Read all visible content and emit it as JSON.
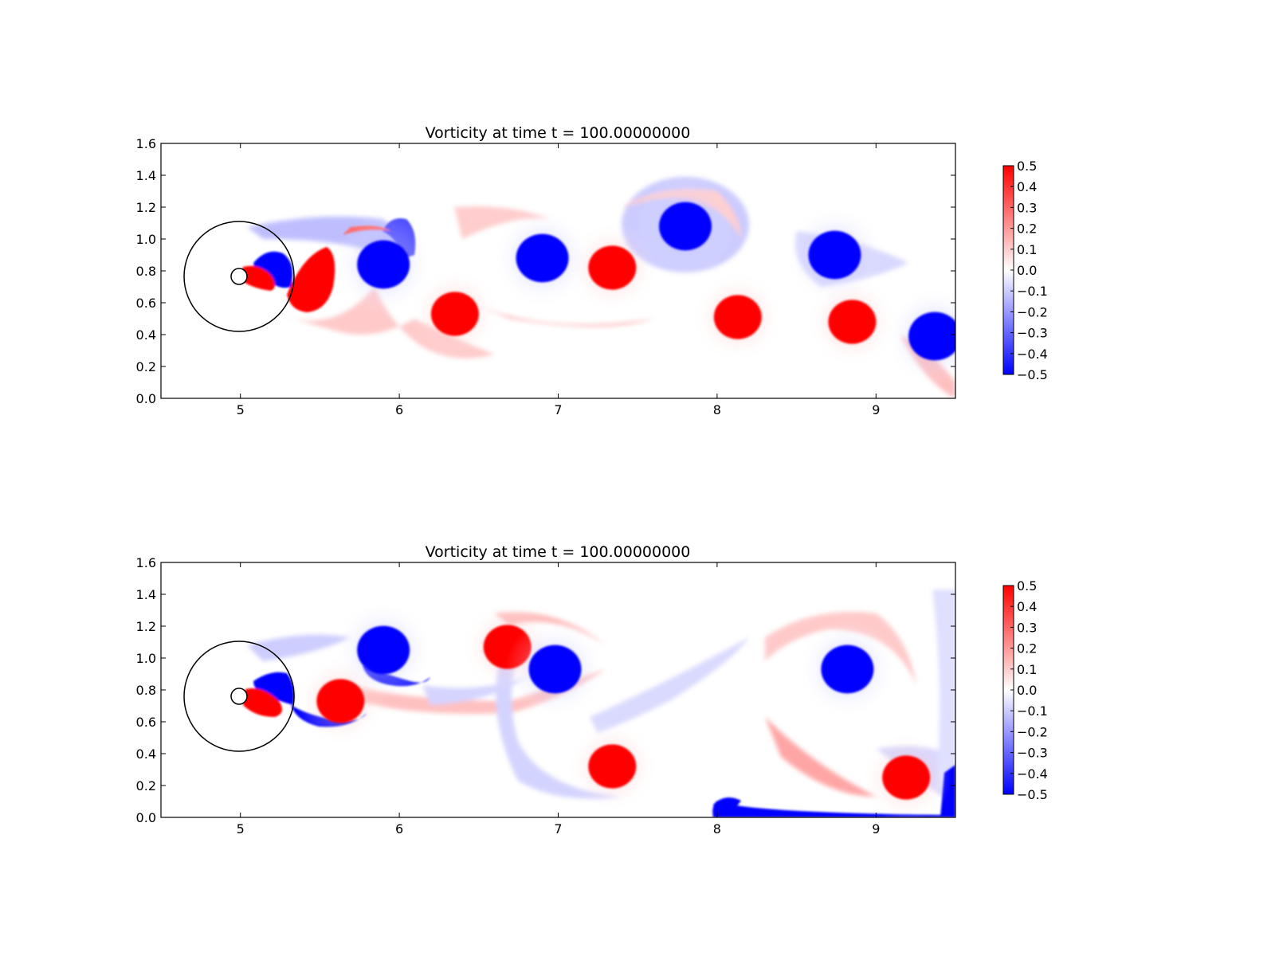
{
  "chart_data": [
    {
      "type": "heatmap",
      "title": "Vorticity at time t =    100.00000000",
      "xlabel": "",
      "ylabel": "",
      "xlim": [
        4.5,
        9.5
      ],
      "ylim": [
        0.0,
        1.6
      ],
      "xticks": [
        "5",
        "6",
        "7",
        "8",
        "9"
      ],
      "yticks": [
        "0.0",
        "0.2",
        "0.4",
        "0.6",
        "0.8",
        "1.0",
        "1.2",
        "1.4",
        "1.6"
      ],
      "colorbar": {
        "range": [
          -0.5,
          0.5
        ],
        "colors": [
          "#0000ff",
          "#ffffff",
          "#ff0000"
        ],
        "ticks": [
          "0.5",
          "0.4",
          "0.3",
          "0.2",
          "0.1",
          "0.0",
          "−0.1",
          "−0.2",
          "−0.3",
          "−0.4",
          "−0.5"
        ]
      },
      "body": {
        "center": [
          5.0,
          0.76
        ],
        "radius": 0.05,
        "outer_circle_radius": 0.35
      },
      "vortices": [
        {
          "x": 5.9,
          "y": 0.84,
          "sign": "negative"
        },
        {
          "x": 6.35,
          "y": 0.53,
          "sign": "positive"
        },
        {
          "x": 6.9,
          "y": 0.88,
          "sign": "negative"
        },
        {
          "x": 7.34,
          "y": 0.82,
          "sign": "positive"
        },
        {
          "x": 7.8,
          "y": 1.08,
          "sign": "negative"
        },
        {
          "x": 8.13,
          "y": 0.51,
          "sign": "positive"
        },
        {
          "x": 8.74,
          "y": 0.9,
          "sign": "negative"
        },
        {
          "x": 8.85,
          "y": 0.48,
          "sign": "positive"
        },
        {
          "x": 9.37,
          "y": 0.39,
          "sign": "negative"
        }
      ]
    },
    {
      "type": "heatmap",
      "title": "Vorticity at time t =    100.00000000",
      "xlabel": "",
      "ylabel": "",
      "xlim": [
        4.5,
        9.5
      ],
      "ylim": [
        0.0,
        1.6
      ],
      "xticks": [
        "5",
        "6",
        "7",
        "8",
        "9"
      ],
      "yticks": [
        "0.0",
        "0.2",
        "0.4",
        "0.6",
        "0.8",
        "1.0",
        "1.2",
        "1.4",
        "1.6"
      ],
      "colorbar": {
        "range": [
          -0.5,
          0.5
        ],
        "colors": [
          "#0000ff",
          "#ffffff",
          "#ff0000"
        ],
        "ticks": [
          "0.5",
          "0.4",
          "0.3",
          "0.2",
          "0.1",
          "0.0",
          "−0.1",
          "−0.2",
          "−0.3",
          "−0.4",
          "−0.5"
        ]
      },
      "body": {
        "center": [
          5.0,
          0.76
        ],
        "radius": 0.05,
        "outer_circle_radius": 0.35
      },
      "vortices": [
        {
          "x": 5.9,
          "y": 1.05,
          "sign": "negative"
        },
        {
          "x": 5.63,
          "y": 0.73,
          "sign": "positive"
        },
        {
          "x": 6.68,
          "y": 1.07,
          "sign": "positive"
        },
        {
          "x": 6.98,
          "y": 0.93,
          "sign": "negative"
        },
        {
          "x": 7.34,
          "y": 0.32,
          "sign": "positive"
        },
        {
          "x": 8.82,
          "y": 0.93,
          "sign": "negative"
        },
        {
          "x": 9.19,
          "y": 0.25,
          "sign": "positive"
        }
      ]
    }
  ]
}
